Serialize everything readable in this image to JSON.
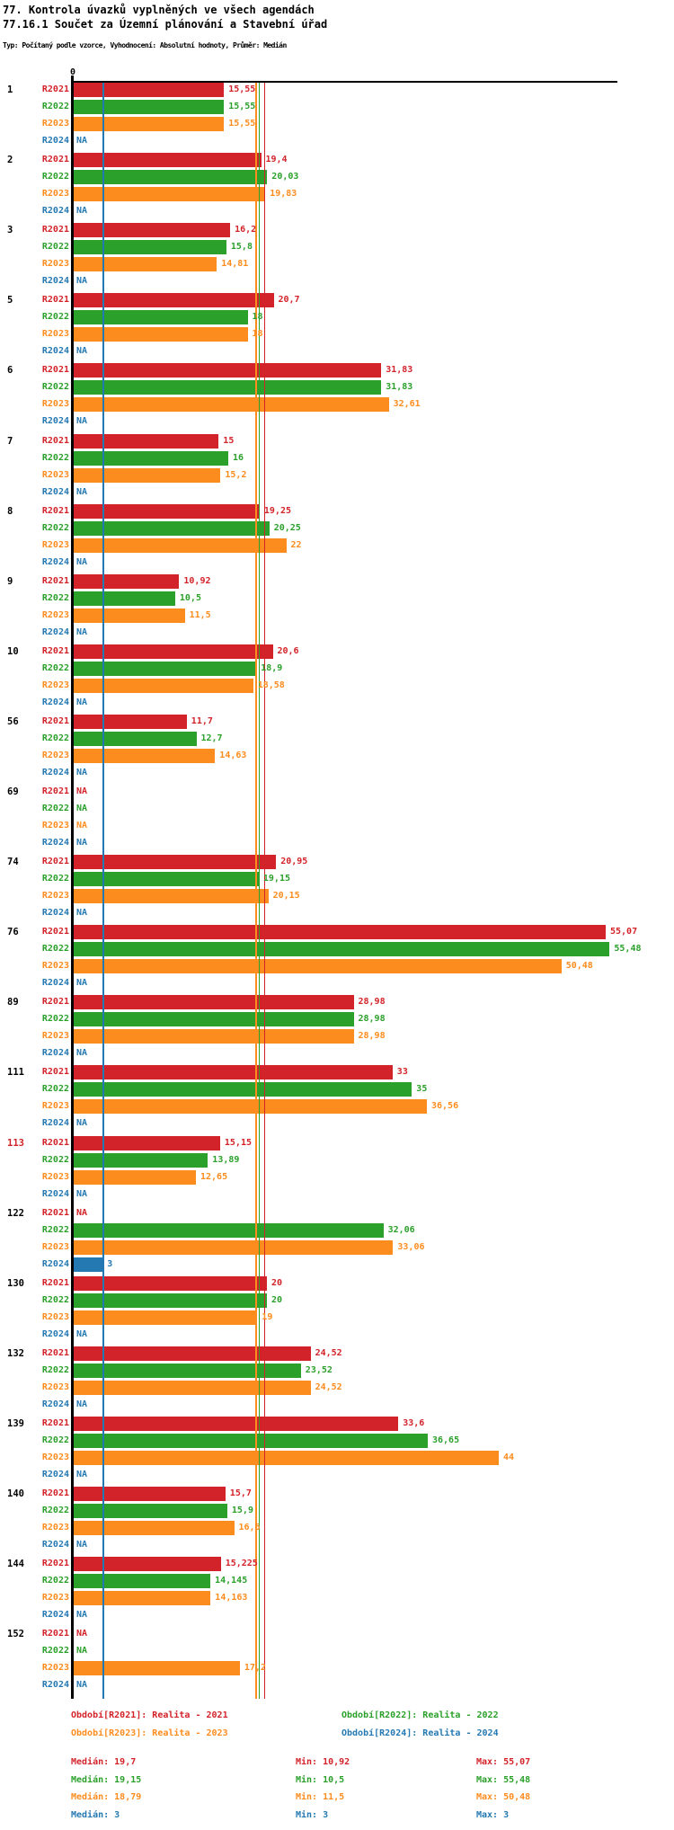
{
  "title": "77. Kontrola úvazků vyplněných ve všech agendách",
  "subtitle": "77.16.1 Součet za Územní plánování a Stavební úřad",
  "meta": "Typ: Počítaný podle vzorce, Vyhodnocení: Absolutní hodnoty, Průměr: Medián",
  "na_text": "NA",
  "chart_data": {
    "type": "bar",
    "orientation": "horizontal",
    "x_axis": {
      "tick_label": "0",
      "min": 0,
      "max": 56.3,
      "grid": false
    },
    "series": [
      {
        "name": "R2021",
        "color": "#d3232a",
        "median": 19.7
      },
      {
        "name": "R2022",
        "color": "#2ba02b",
        "median": 19.15
      },
      {
        "name": "R2023",
        "color": "#fd8c1e",
        "median": 18.79
      },
      {
        "name": "R2024",
        "color": "#2579b2",
        "median": 3
      }
    ],
    "groups": [
      {
        "label": "1",
        "highlight": false,
        "bars": [
          "15,55",
          "15,55",
          "15,55",
          "NA"
        ]
      },
      {
        "label": "2",
        "highlight": false,
        "bars": [
          "19,4",
          "20,03",
          "19,83",
          "NA"
        ]
      },
      {
        "label": "3",
        "highlight": false,
        "bars": [
          "16,2",
          "15,8",
          "14,81",
          "NA"
        ]
      },
      {
        "label": "5",
        "highlight": false,
        "bars": [
          "20,7",
          "18",
          "18",
          "NA"
        ]
      },
      {
        "label": "6",
        "highlight": false,
        "bars": [
          "31,83",
          "31,83",
          "32,61",
          "NA"
        ]
      },
      {
        "label": "7",
        "highlight": false,
        "bars": [
          "15",
          "16",
          "15,2",
          "NA"
        ]
      },
      {
        "label": "8",
        "highlight": false,
        "bars": [
          "19,25",
          "20,25",
          "22",
          "NA"
        ]
      },
      {
        "label": "9",
        "highlight": false,
        "bars": [
          "10,92",
          "10,5",
          "11,5",
          "NA"
        ]
      },
      {
        "label": "10",
        "highlight": false,
        "bars": [
          "20,6",
          "18,9",
          "18,58",
          "NA"
        ]
      },
      {
        "label": "56",
        "highlight": false,
        "bars": [
          "11,7",
          "12,7",
          "14,63",
          "NA"
        ]
      },
      {
        "label": "69",
        "highlight": false,
        "bars": [
          "NA",
          "NA",
          "NA",
          "NA"
        ]
      },
      {
        "label": "74",
        "highlight": false,
        "bars": [
          "20,95",
          "19,15",
          "20,15",
          "NA"
        ]
      },
      {
        "label": "76",
        "highlight": false,
        "bars": [
          "55,07",
          "55,48",
          "50,48",
          "NA"
        ]
      },
      {
        "label": "89",
        "highlight": false,
        "bars": [
          "28,98",
          "28,98",
          "28,98",
          "NA"
        ]
      },
      {
        "label": "111",
        "highlight": false,
        "bars": [
          "33",
          "35",
          "36,56",
          "NA"
        ]
      },
      {
        "label": "113",
        "highlight": true,
        "bars": [
          "15,15",
          "13,89",
          "12,65",
          "NA"
        ]
      },
      {
        "label": "122",
        "highlight": false,
        "bars": [
          "NA",
          "32,06",
          "33,06",
          "3"
        ]
      },
      {
        "label": "130",
        "highlight": false,
        "bars": [
          "20",
          "20",
          "19",
          "NA"
        ]
      },
      {
        "label": "132",
        "highlight": false,
        "bars": [
          "24,52",
          "23,52",
          "24,52",
          "NA"
        ]
      },
      {
        "label": "139",
        "highlight": false,
        "bars": [
          "33,6",
          "36,65",
          "44",
          "NA"
        ]
      },
      {
        "label": "140",
        "highlight": false,
        "bars": [
          "15,7",
          "15,9",
          "16,6",
          "NA"
        ]
      },
      {
        "label": "144",
        "highlight": false,
        "bars": [
          "15,225",
          "14,145",
          "14,163",
          "NA"
        ]
      },
      {
        "label": "152",
        "highlight": false,
        "bars": [
          "NA",
          "NA",
          "17,2",
          "NA"
        ]
      }
    ]
  },
  "legend": [
    {
      "series": "R2021",
      "label": "Období[R2021]: Realita - 2021"
    },
    {
      "series": "R2022",
      "label": "Období[R2022]: Realita - 2022"
    },
    {
      "series": "R2023",
      "label": "Období[R2023]: Realita - 2023"
    },
    {
      "series": "R2024",
      "label": "Období[R2024]: Realita - 2024"
    }
  ],
  "stats": [
    {
      "series": "R2021",
      "median_label": "Medián: 19,7",
      "min_label": "Min: 10,92",
      "max_label": "Max: 55,07"
    },
    {
      "series": "R2022",
      "median_label": "Medián: 19,15",
      "min_label": "Min: 10,5",
      "max_label": "Max: 55,48"
    },
    {
      "series": "R2023",
      "median_label": "Medián: 18,79",
      "min_label": "Min: 11,5",
      "max_label": "Max: 50,48"
    },
    {
      "series": "R2024",
      "median_label": "Medián: 3",
      "min_label": "Min: 3",
      "max_label": "Max: 3"
    }
  ]
}
